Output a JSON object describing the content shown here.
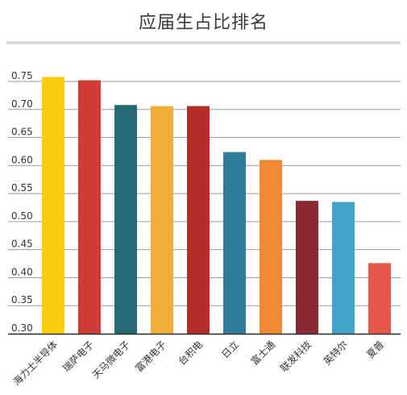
{
  "title": "应届生占比排名",
  "chart_data": {
    "type": "bar",
    "title": "应届生占比排名",
    "xlabel": "",
    "ylabel": "",
    "ylim": [
      0.3,
      0.75
    ],
    "yticks": [
      0.75,
      0.7,
      0.65,
      0.6,
      0.55,
      0.5,
      0.45,
      0.4,
      0.35,
      0.3
    ],
    "ytick_labels": [
      "0.75",
      "0.70",
      "0.65",
      "0.60",
      "0.55",
      "0.50",
      "0.45",
      "0.40",
      "0.35",
      "0.30"
    ],
    "grid": true,
    "legend": "none",
    "categories": [
      "海力士半导体",
      "瑞萨电子",
      "天马微电子",
      "富港电子",
      "台积电",
      "日立",
      "富士通",
      "联发科技",
      "英特尔",
      "夏普"
    ],
    "values": [
      0.758,
      0.752,
      0.708,
      0.706,
      0.706,
      0.624,
      0.61,
      0.537,
      0.535,
      0.426
    ],
    "colors": [
      "#F9CE0E",
      "#CF3B35",
      "#246B76",
      "#F0AD3A",
      "#B32E27",
      "#2D7D9A",
      "#EE8B33",
      "#8B2A33",
      "#41A4C7",
      "#E6574B"
    ]
  }
}
